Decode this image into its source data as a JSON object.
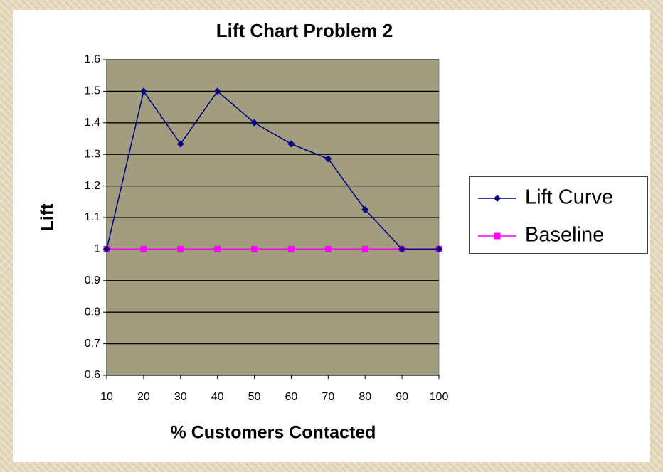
{
  "chart_data": {
    "type": "line",
    "title": "Lift Chart Problem 2",
    "x_label": "% Customers Contacted",
    "y_label": "Lift",
    "x": [
      10,
      20,
      30,
      40,
      50,
      60,
      70,
      80,
      90,
      100
    ],
    "series": [
      {
        "name": "Lift Curve",
        "color": "#000080",
        "marker": "diamond",
        "values": [
          1,
          1.5,
          1.333,
          1.5,
          1.4,
          1.333,
          1.286,
          1.125,
          1,
          1
        ]
      },
      {
        "name": "Baseline",
        "color": "#ff00ff",
        "marker": "square",
        "values": [
          1,
          1,
          1,
          1,
          1,
          1,
          1,
          1,
          1,
          1
        ]
      }
    ],
    "xlim": [
      10,
      100
    ],
    "xticks": [
      10,
      20,
      30,
      40,
      50,
      60,
      70,
      80,
      90,
      100
    ],
    "ylim": [
      0.6,
      1.6
    ],
    "yticks": [
      0.6,
      0.7,
      0.8,
      0.9,
      1,
      1.1,
      1.2,
      1.3,
      1.4,
      1.5,
      1.6
    ],
    "grid": true,
    "legend": "right",
    "plot_background": "#a19d7e"
  }
}
